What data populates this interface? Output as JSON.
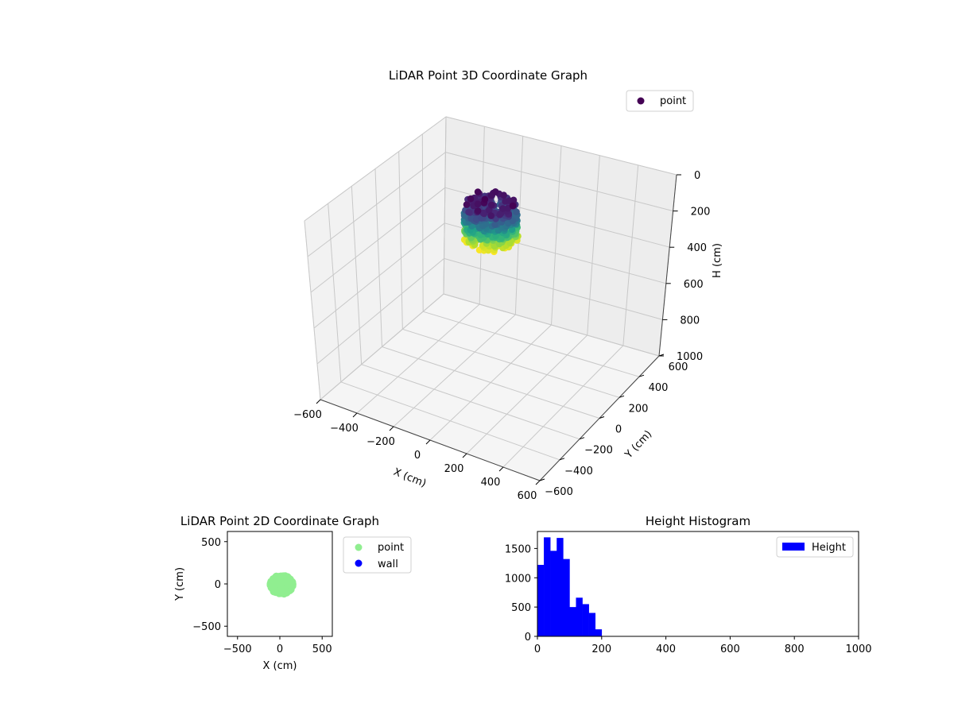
{
  "chart_data": [
    {
      "type": "scatter",
      "projection": "3d",
      "title": "LiDAR Point 3D Coordinate Graph",
      "xlabel": "X (cm)",
      "ylabel": "Y (cm)",
      "zlabel": "H (cm)",
      "xlim": [
        -600,
        600
      ],
      "ylim": [
        -600,
        600
      ],
      "zlim": [
        0,
        1000
      ],
      "z_axis_inverted": true,
      "xticks": [
        -600,
        -400,
        -200,
        0,
        200,
        400,
        600
      ],
      "yticks": [
        -600,
        -400,
        -200,
        0,
        200,
        400,
        600
      ],
      "zticks": [
        0,
        200,
        400,
        600,
        800,
        1000
      ],
      "xtick_labels": [
        "−600",
        "−400",
        "−200",
        "0",
        "200",
        "400",
        "600"
      ],
      "ytick_labels": [
        "−600",
        "−400",
        "−200",
        "0",
        "200",
        "400",
        "600"
      ],
      "ztick_labels": [
        "0",
        "200",
        "400",
        "600",
        "800",
        "1000"
      ],
      "colormap": "viridis",
      "color_by": "height",
      "grid": true,
      "legend": {
        "position": "top-right",
        "entries": [
          "point"
        ]
      },
      "series": [
        {
          "name": "point",
          "color": "#440154",
          "cluster_center": [
            10,
            -10
          ],
          "cluster_radius": 120,
          "h_range": [
            0,
            210
          ]
        }
      ]
    },
    {
      "type": "scatter",
      "title": "LiDAR Point 2D Coordinate Graph",
      "xlabel": "X (cm)",
      "ylabel": "Y (cm)",
      "xlim": [
        -620,
        620
      ],
      "ylim": [
        -620,
        620
      ],
      "xticks": [
        -500,
        0,
        500
      ],
      "yticks": [
        -500,
        0,
        500
      ],
      "xtick_labels": [
        "−500",
        "0",
        "500"
      ],
      "ytick_labels": [
        "−500",
        "0",
        "500"
      ],
      "legend": {
        "position": "outside-right",
        "entries": [
          "point",
          "wall"
        ]
      },
      "series": [
        {
          "name": "point",
          "color": "#90ee90",
          "cluster_center": [
            20,
            -10
          ],
          "cluster_extent": [
            [
              -110,
              160
            ],
            [
              -120,
              110
            ]
          ]
        },
        {
          "name": "wall",
          "color": "#0000ff",
          "points": []
        }
      ]
    },
    {
      "type": "bar",
      "subtype": "histogram",
      "title": "Height Histogram",
      "xlabel": "",
      "ylabel": "",
      "xlim": [
        0,
        1000
      ],
      "ylim": [
        0,
        1790
      ],
      "xticks": [
        0,
        200,
        400,
        600,
        800,
        1000
      ],
      "yticks": [
        0,
        500,
        1000,
        1500
      ],
      "xtick_labels": [
        "0",
        "200",
        "400",
        "600",
        "800",
        "1000"
      ],
      "ytick_labels": [
        "0",
        "500",
        "1000",
        "1500"
      ],
      "bin_width": 20,
      "bin_starts": [
        0,
        20,
        40,
        60,
        80,
        100,
        120,
        140,
        160,
        180
      ],
      "color": "#0000ff",
      "legend": {
        "position": "top-right",
        "entries": [
          "Height"
        ]
      },
      "series": [
        {
          "name": "Height",
          "values": [
            1220,
            1690,
            1460,
            1680,
            1320,
            500,
            660,
            550,
            400,
            120
          ]
        }
      ]
    }
  ]
}
